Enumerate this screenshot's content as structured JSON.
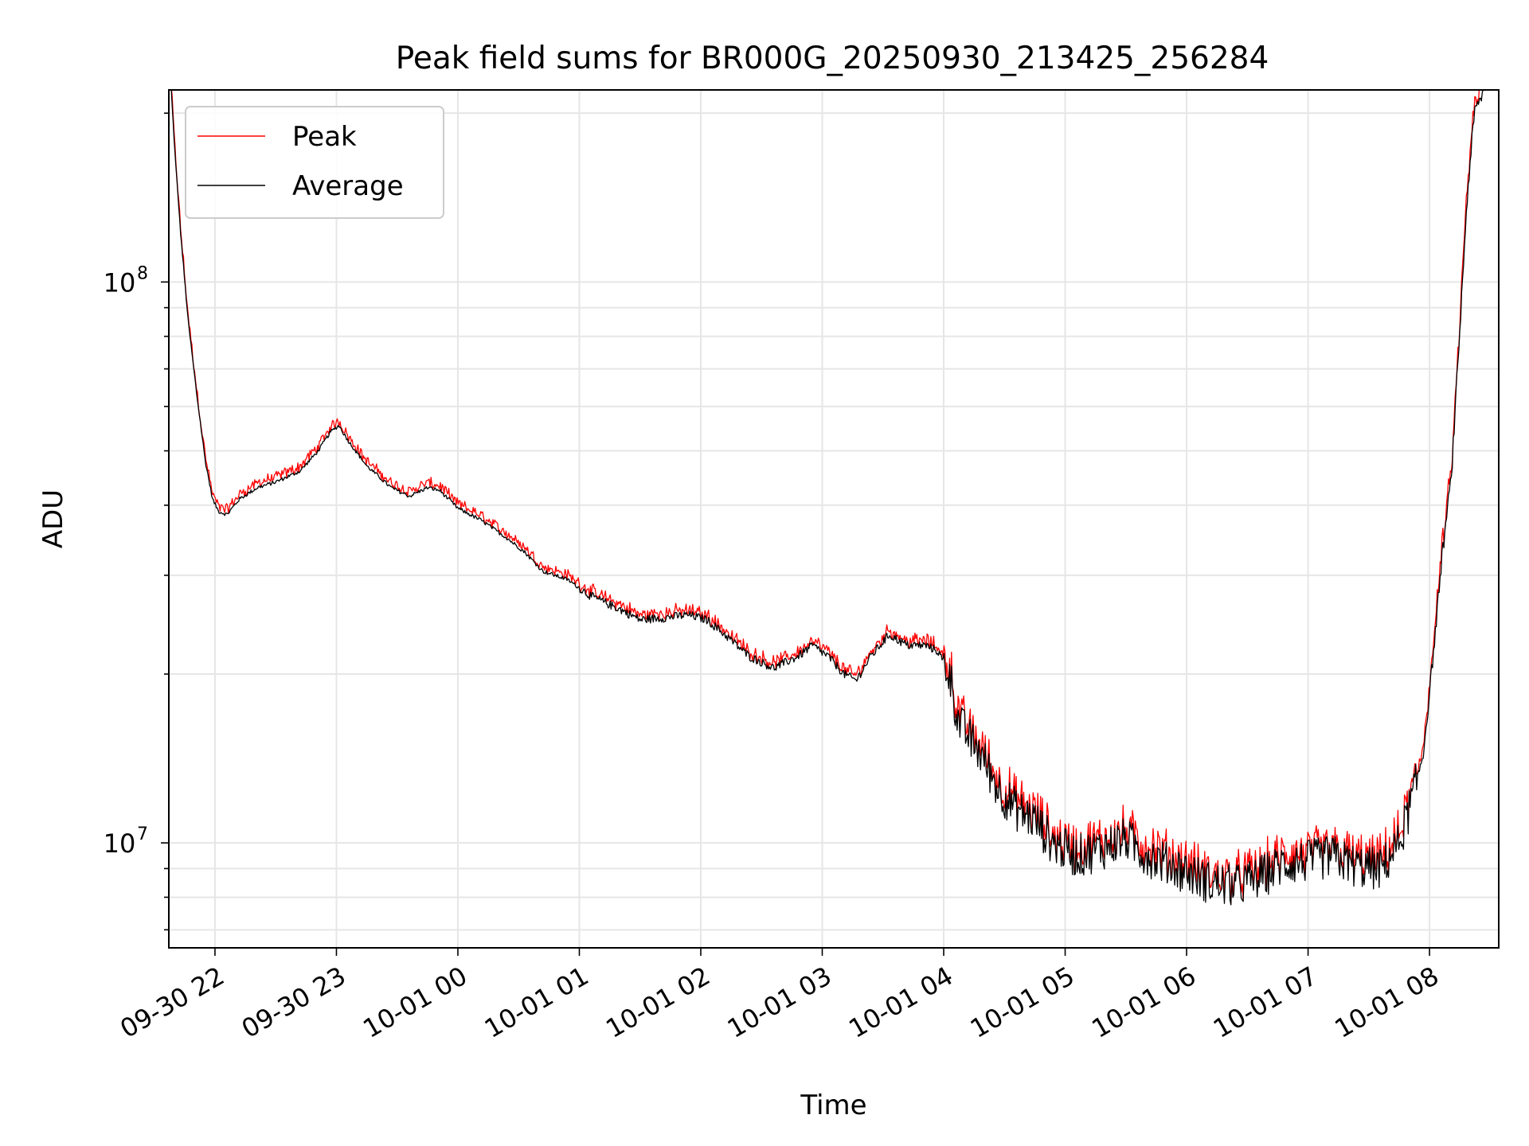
{
  "chart_data": {
    "type": "line",
    "title": "Peak field sums for BR000G_20250930_213425_256284",
    "xlabel": "Time",
    "ylabel": "ADU",
    "yscale": "log",
    "ylim": [
      6500000,
      220000000
    ],
    "xlim_hours": [
      -0.38,
      10.57
    ],
    "x_unit": "hours since 09-30 22:00",
    "y_major_ticks": [
      {
        "value": 10000000,
        "base": "10",
        "exp": "7"
      },
      {
        "value": 100000000,
        "base": "10",
        "exp": "8"
      }
    ],
    "x_ticks": [
      {
        "hour": 0,
        "label": "09-30 22"
      },
      {
        "hour": 1,
        "label": "09-30 23"
      },
      {
        "hour": 2,
        "label": "10-01 00"
      },
      {
        "hour": 3,
        "label": "10-01 01"
      },
      {
        "hour": 4,
        "label": "10-01 02"
      },
      {
        "hour": 5,
        "label": "10-01 03"
      },
      {
        "hour": 6,
        "label": "10-01 04"
      },
      {
        "hour": 7,
        "label": "10-01 05"
      },
      {
        "hour": 8,
        "label": "10-01 06"
      },
      {
        "hour": 9,
        "label": "10-01 07"
      },
      {
        "hour": 10,
        "label": "10-01 08"
      }
    ],
    "grid": true,
    "legend_position": "top-left",
    "series": [
      {
        "name": "Peak",
        "color": "#ff0000"
      },
      {
        "name": "Average",
        "color": "#000000"
      }
    ],
    "average_curve": [
      [
        -0.36,
        220000000
      ],
      [
        -0.33,
        170000000
      ],
      [
        -0.28,
        120000000
      ],
      [
        -0.22,
        85000000
      ],
      [
        -0.15,
        63000000
      ],
      [
        -0.08,
        48000000
      ],
      [
        -0.02,
        41000000
      ],
      [
        0.03,
        39000000
      ],
      [
        0.1,
        38500000
      ],
      [
        0.2,
        41000000
      ],
      [
        0.35,
        43000000
      ],
      [
        0.5,
        44000000
      ],
      [
        0.7,
        46000000
      ],
      [
        0.85,
        50000000
      ],
      [
        0.95,
        54000000
      ],
      [
        1.02,
        55500000
      ],
      [
        1.1,
        52000000
      ],
      [
        1.25,
        47000000
      ],
      [
        1.45,
        43000000
      ],
      [
        1.6,
        41500000
      ],
      [
        1.75,
        43000000
      ],
      [
        1.85,
        42500000
      ],
      [
        2.0,
        39500000
      ],
      [
        2.2,
        37500000
      ],
      [
        2.4,
        35000000
      ],
      [
        2.55,
        33000000
      ],
      [
        2.7,
        30500000
      ],
      [
        2.9,
        29500000
      ],
      [
        3.1,
        27500000
      ],
      [
        3.35,
        26000000
      ],
      [
        3.5,
        25000000
      ],
      [
        3.7,
        25200000
      ],
      [
        3.9,
        25500000
      ],
      [
        4.05,
        25000000
      ],
      [
        4.2,
        23500000
      ],
      [
        4.4,
        21500000
      ],
      [
        4.6,
        20500000
      ],
      [
        4.8,
        21500000
      ],
      [
        4.92,
        22500000
      ],
      [
        5.05,
        21500000
      ],
      [
        5.18,
        20000000
      ],
      [
        5.28,
        19500000
      ],
      [
        5.4,
        21500000
      ],
      [
        5.55,
        23500000
      ],
      [
        5.7,
        22500000
      ],
      [
        5.85,
        22500000
      ],
      [
        5.95,
        22000000
      ],
      [
        6.05,
        20000000
      ],
      [
        6.12,
        16500000
      ],
      [
        6.2,
        15500000
      ],
      [
        6.3,
        14500000
      ],
      [
        6.45,
        12500000
      ],
      [
        6.6,
        11500000
      ],
      [
        6.75,
        11000000
      ],
      [
        6.9,
        10000000
      ],
      [
        7.1,
        9500000
      ],
      [
        7.3,
        9800000
      ],
      [
        7.5,
        10200000
      ],
      [
        7.65,
        9600000
      ],
      [
        7.8,
        9300000
      ],
      [
        8.0,
        8900000
      ],
      [
        8.2,
        8500000
      ],
      [
        8.4,
        8400000
      ],
      [
        8.6,
        8700000
      ],
      [
        8.8,
        9200000
      ],
      [
        9.0,
        9300000
      ],
      [
        9.2,
        9500000
      ],
      [
        9.4,
        9100000
      ],
      [
        9.6,
        9000000
      ],
      [
        9.75,
        10000000
      ],
      [
        9.88,
        12500000
      ],
      [
        9.95,
        14500000
      ],
      [
        10.0,
        18500000
      ],
      [
        10.05,
        24000000
      ],
      [
        10.1,
        32000000
      ],
      [
        10.18,
        45000000
      ],
      [
        10.26,
        90000000
      ],
      [
        10.3,
        130000000
      ],
      [
        10.33,
        160000000
      ],
      [
        10.37,
        200000000
      ],
      [
        10.45,
        220000000
      ]
    ]
  }
}
